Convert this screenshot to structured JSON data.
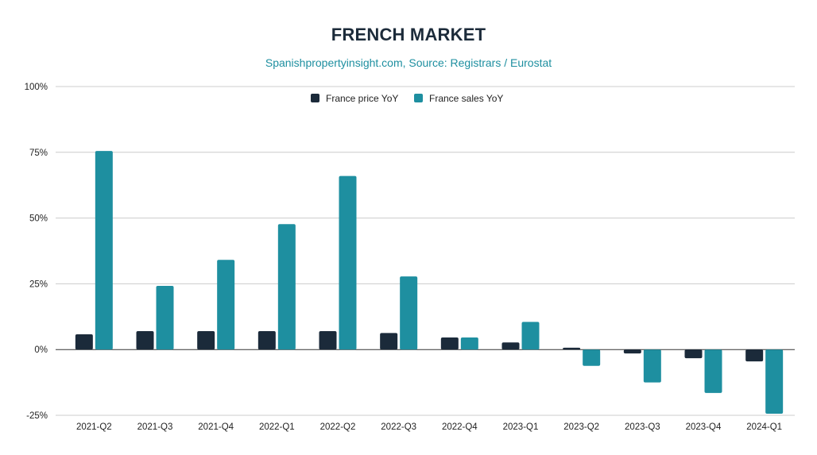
{
  "chart_data": {
    "type": "bar",
    "title": "FRENCH MARKET",
    "subtitle": "Spanishpropertyinsight.com, Source: Registrars / Eurostat",
    "categories": [
      "2021-Q2",
      "2021-Q3",
      "2021-Q4",
      "2022-Q1",
      "2022-Q2",
      "2022-Q3",
      "2022-Q4",
      "2023-Q1",
      "2023-Q2",
      "2023-Q3",
      "2023-Q4",
      "2024-Q1"
    ],
    "series": [
      {
        "name": "France price YoY",
        "color": "#1b2a3a",
        "values": [
          5.8,
          7.0,
          7.0,
          7.0,
          7.0,
          6.3,
          4.6,
          2.7,
          0.7,
          -1.5,
          -3.3,
          -4.5
        ]
      },
      {
        "name": "France sales YoY",
        "color": "#1e8fa0",
        "values": [
          75.5,
          24.2,
          34.1,
          47.7,
          66.0,
          27.8,
          4.6,
          10.5,
          -6.2,
          -12.5,
          -16.5,
          -24.4
        ]
      }
    ],
    "yticks": [
      "100%",
      "75%",
      "50%",
      "25%",
      "0%",
      "-25%"
    ],
    "ytick_values": [
      100,
      75,
      50,
      25,
      0,
      -25
    ],
    "ylim": [
      -25,
      100
    ],
    "legend": "top-center",
    "grid": true
  }
}
